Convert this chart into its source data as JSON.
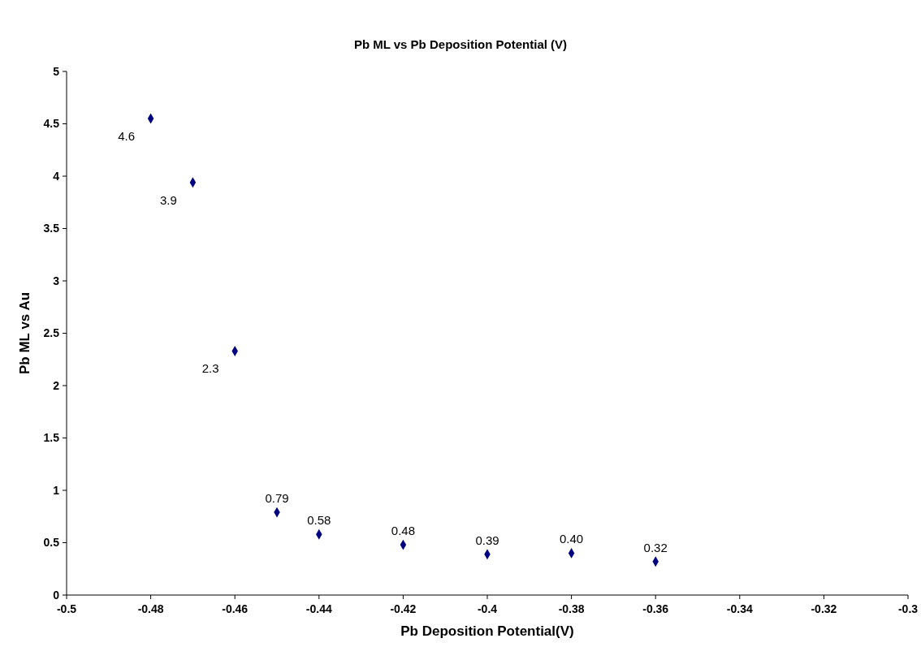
{
  "chart_data": {
    "type": "scatter",
    "title": "Pb ML vs Pb Deposition Potential (V)",
    "xlabel": "Pb Deposition Potential(V)",
    "ylabel": "Pb ML vs Au",
    "x": [
      -0.48,
      -0.47,
      -0.46,
      -0.45,
      -0.44,
      -0.42,
      -0.4,
      -0.38,
      -0.36
    ],
    "series": [
      {
        "color": "#000080",
        "values": [
          4.55,
          3.94,
          2.33,
          0.79,
          0.58,
          0.48,
          0.39,
          0.4,
          0.32
        ],
        "value_labels": [
          "4.6",
          "3.9",
          "2.3",
          "0.79",
          "0.58",
          "0.48",
          "0.39",
          "0.40",
          "0.32"
        ]
      }
    ],
    "xlim": [
      -0.5,
      -0.3
    ],
    "xticks": [
      -0.5,
      -0.48,
      -0.46,
      -0.44,
      -0.42,
      -0.4,
      -0.38,
      -0.36,
      -0.34,
      -0.32,
      -0.3
    ],
    "ylim": [
      0,
      5
    ],
    "yticks": [
      0,
      0.5,
      1,
      1.5,
      2,
      2.5,
      3,
      3.5,
      4,
      4.5,
      5
    ],
    "grid": false,
    "marker": "diamond"
  }
}
